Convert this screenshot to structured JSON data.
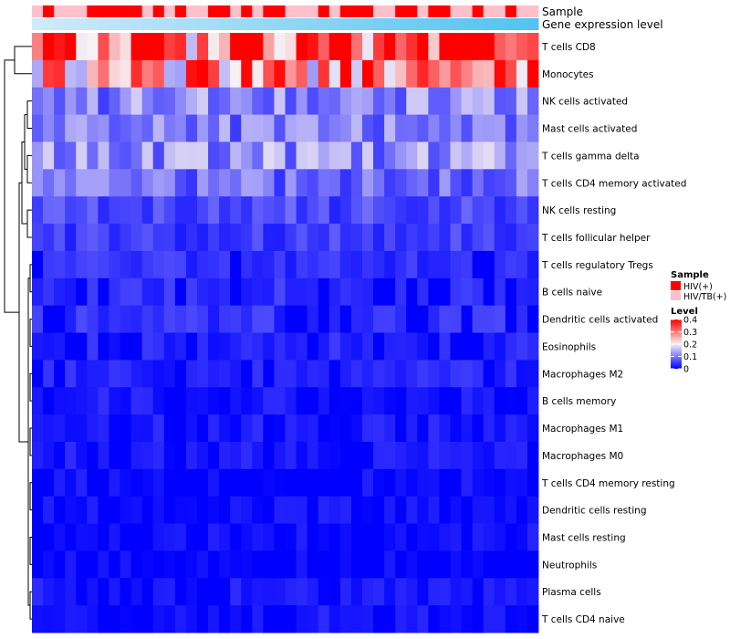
{
  "chart_data": {
    "type": "heatmap",
    "title": "",
    "rows": [
      "T cells CD8",
      "Monocytes",
      "NK cells activated",
      "Mast cells activated",
      "T cells gamma delta",
      "T cells CD4 memory activated",
      "NK cells resting",
      "T cells follicular helper",
      "T cells regulatory  Tregs",
      "B cells naive",
      "Dendritic cells activated",
      "Eosinophils",
      "Macrophages M2",
      "B cells memory",
      "Macrophages M1",
      "Macrophages M0",
      "T cells CD4 memory resting",
      "Dendritic cells resting",
      "Mast cells resting",
      "Neutrophils",
      "Plasma cells",
      "T cells CD4 naive"
    ],
    "row_levels": [
      0.33,
      0.28,
      0.11,
      0.1,
      0.12,
      0.09,
      0.06,
      0.05,
      0.04,
      0.04,
      0.04,
      0.03,
      0.03,
      0.02,
      0.02,
      0.02,
      0.01,
      0.01,
      0.01,
      0.005,
      0.02,
      0.015
    ],
    "column_samples": [
      "HIV/TB(+)",
      "HIV(+)",
      "HIV/TB(+)",
      "HIV/TB(+)",
      "HIV/TB(+)",
      "HIV(+)",
      "HIV(+)",
      "HIV(+)",
      "HIV(+)",
      "HIV(+)",
      "HIV/TB(+)",
      "HIV(+)",
      "HIV/TB(+)",
      "HIV(+)",
      "HIV/TB(+)",
      "HIV/TB(+)",
      "HIV(+)",
      "HIV(+)",
      "HIV/TB(+)",
      "HIV(+)",
      "HIV/TB(+)",
      "HIV(+)",
      "HIV(+)",
      "HIV/TB(+)",
      "HIV/TB(+)",
      "HIV/TB(+)",
      "HIV(+)",
      "HIV/TB(+)",
      "HIV(+)",
      "HIV(+)",
      "HIV(+)",
      "HIV/TB(+)",
      "HIV/TB(+)",
      "HIV(+)",
      "HIV(+)",
      "HIV/TB(+)",
      "HIV(+)",
      "HIV(+)",
      "HIV/TB(+)",
      "HIV/TB(+)",
      "HIV(+)",
      "HIV/TB(+)",
      "HIV/TB(+)",
      "HIV(+)",
      "HIV/TB(+)",
      "HIV/TB(+)"
    ],
    "annotations": [
      {
        "name": "Sample",
        "legend_title": "Sample",
        "levels": [
          {
            "label": "HIV(+)",
            "color": "#ff0000"
          },
          {
            "label": "HIV/TB(+)",
            "color": "#ffc0cb"
          }
        ]
      },
      {
        "name": "Gene expression level"
      }
    ],
    "color_scale": {
      "title": "Level",
      "stops": [
        {
          "value": 0,
          "color": "#0000ff"
        },
        {
          "value": 0.2,
          "color": "#f7f0f4"
        },
        {
          "value": 0.4,
          "color": "#ff0000"
        }
      ],
      "ticks": [
        {
          "value": 0.4,
          "label": "0.4"
        },
        {
          "value": 0.3,
          "label": "0.3"
        },
        {
          "value": 0.2,
          "label": "0.2"
        },
        {
          "value": 0.1,
          "label": "0.1"
        },
        {
          "value": 0,
          "label": "0"
        }
      ]
    },
    "n_columns": 46
  }
}
